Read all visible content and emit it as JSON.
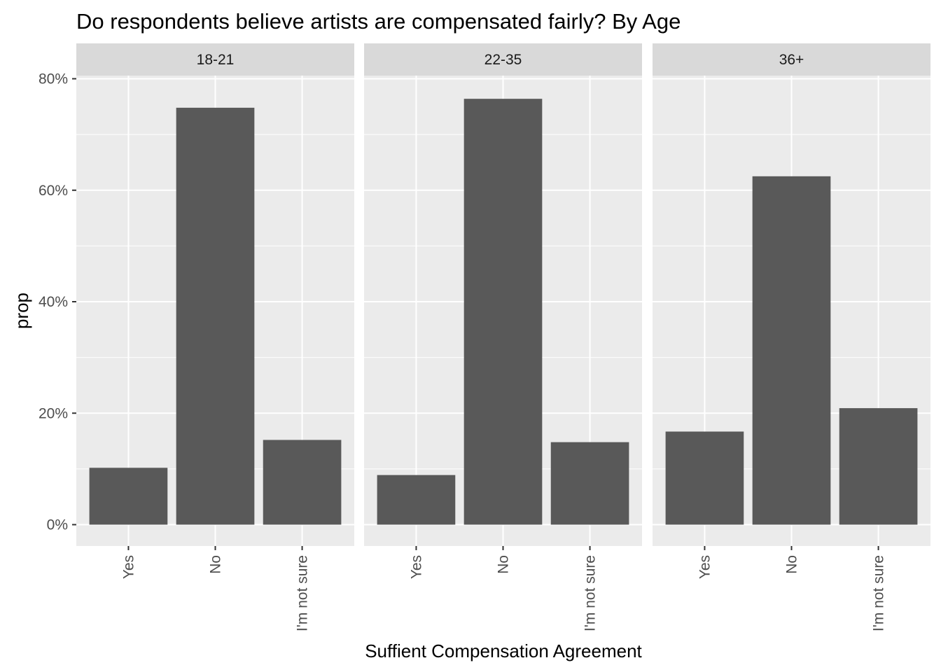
{
  "chart_data": {
    "type": "bar",
    "title": "Do respondents believe artists are compensated fairly? By Age",
    "xlabel": "Suffient Compensation Agreement",
    "ylabel": "prop",
    "categories": [
      "Yes",
      "No",
      "I'm not sure"
    ],
    "ylim": [
      0,
      0.84
    ],
    "yticks": [
      0,
      0.2,
      0.4,
      0.6,
      0.8
    ],
    "ytick_labels": [
      "0%",
      "20%",
      "40%",
      "60%",
      "80%"
    ],
    "grid": true,
    "facets": [
      {
        "label": "18-21",
        "values": [
          0.102,
          0.748,
          0.152
        ]
      },
      {
        "label": "22-35",
        "values": [
          0.089,
          0.764,
          0.148
        ]
      },
      {
        "label": "36+",
        "values": [
          0.167,
          0.625,
          0.209
        ]
      }
    ],
    "colors": {
      "bar": "#595959",
      "panel": "#ebebeb",
      "strip": "#d9d9d9",
      "gridline": "#ffffff"
    }
  }
}
